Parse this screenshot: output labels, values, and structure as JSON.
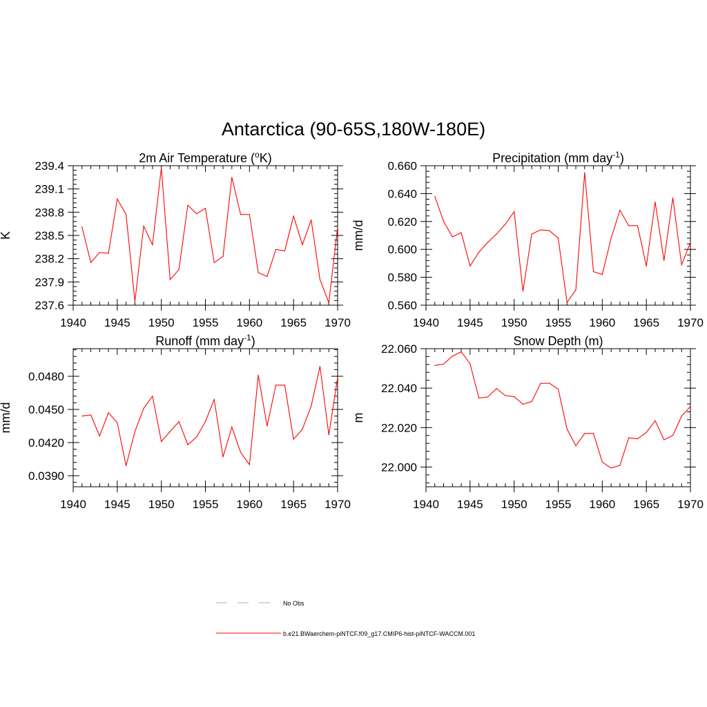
{
  "title": "Antarctica (90-65S,180W-180E)",
  "colors": {
    "series": "#ff0000",
    "obs": "#aaaadd",
    "axis": "#000000"
  },
  "legend": [
    {
      "label": "No Obs",
      "style": "dashed",
      "color": "#aaaadd"
    },
    {
      "label": "b.e21.BWaerchem-piNTCF.f09_g17.CMIP6-hist-piNTCF-WACCM.001",
      "style": "solid",
      "color": "#ff0000"
    }
  ],
  "chart_data": [
    {
      "type": "line",
      "title_main": "2m Air Temperature (",
      "title_sup": "o",
      "title_tail": "K)",
      "ylabel": "K",
      "xlim": [
        1940,
        1970
      ],
      "ylim": [
        237.6,
        239.4
      ],
      "xticks": [
        "1940",
        "1945",
        "1950",
        "1955",
        "1960",
        "1965",
        "1970"
      ],
      "yticks": [
        "237.6",
        "237.9",
        "238.2",
        "238.5",
        "238.8",
        "239.1",
        "239.4"
      ],
      "x": [
        1941,
        1942,
        1943,
        1944,
        1945,
        1946,
        1947,
        1948,
        1949,
        1950,
        1951,
        1952,
        1953,
        1954,
        1955,
        1956,
        1957,
        1958,
        1959,
        1960,
        1961,
        1962,
        1963,
        1964,
        1965,
        1966,
        1967,
        1968,
        1969,
        1970
      ],
      "y": [
        238.61,
        238.15,
        238.28,
        238.27,
        238.97,
        238.77,
        237.65,
        238.62,
        238.38,
        239.37,
        237.93,
        238.06,
        238.89,
        238.78,
        238.85,
        238.15,
        238.23,
        239.25,
        238.77,
        238.77,
        238.02,
        237.97,
        238.32,
        238.3,
        238.75,
        238.38,
        238.7,
        237.93,
        237.63,
        238.61
      ]
    },
    {
      "type": "line",
      "title_main": "Precipitation (mm day",
      "title_sup": "-1",
      "title_tail": ")",
      "ylabel": "mm/d",
      "xlim": [
        1940,
        1970
      ],
      "ylim": [
        0.56,
        0.66
      ],
      "xticks": [
        "1940",
        "1945",
        "1950",
        "1955",
        "1960",
        "1965",
        "1970"
      ],
      "yticks": [
        "0.560",
        "0.580",
        "0.600",
        "0.620",
        "0.640",
        "0.660"
      ],
      "x": [
        1941,
        1942,
        1943,
        1944,
        1945,
        1946,
        1947,
        1948,
        1949,
        1950,
        1951,
        1952,
        1953,
        1954,
        1955,
        1956,
        1957,
        1958,
        1959,
        1960,
        1961,
        1962,
        1963,
        1964,
        1965,
        1966,
        1967,
        1968,
        1969,
        1970
      ],
      "y": [
        0.638,
        0.62,
        0.609,
        0.612,
        0.588,
        0.598,
        0.605,
        0.611,
        0.618,
        0.627,
        0.57,
        0.611,
        0.614,
        0.6135,
        0.608,
        0.562,
        0.571,
        0.655,
        0.584,
        0.582,
        0.608,
        0.628,
        0.617,
        0.617,
        0.588,
        0.634,
        0.592,
        0.637,
        0.589,
        0.605
      ]
    },
    {
      "type": "line",
      "title_main": "Runoff (mm day",
      "title_sup": "-1",
      "title_tail": ")",
      "ylabel": "mm/d",
      "xlim": [
        1940,
        1970
      ],
      "ylim": [
        0.038,
        0.0505
      ],
      "xticks": [
        "1940",
        "1945",
        "1950",
        "1955",
        "1960",
        "1965",
        "1970"
      ],
      "yticks": [
        "0.0390",
        "0.0420",
        "0.0450",
        "0.0480"
      ],
      "x": [
        1941,
        1942,
        1943,
        1944,
        1945,
        1946,
        1947,
        1948,
        1949,
        1950,
        1951,
        1952,
        1953,
        1954,
        1955,
        1956,
        1957,
        1958,
        1959,
        1960,
        1961,
        1962,
        1963,
        1964,
        1965,
        1966,
        1967,
        1968,
        1969,
        1970
      ],
      "y": [
        0.0444,
        0.0445,
        0.0426,
        0.0447,
        0.0438,
        0.0399,
        0.043,
        0.0451,
        0.0462,
        0.0421,
        0.043,
        0.0439,
        0.0418,
        0.0425,
        0.0439,
        0.0459,
        0.0407,
        0.0434,
        0.0411,
        0.04,
        0.0481,
        0.0435,
        0.0472,
        0.0472,
        0.0423,
        0.0432,
        0.0453,
        0.0489,
        0.0427,
        0.0479
      ]
    },
    {
      "type": "line",
      "title_main": "Snow Depth (m)",
      "title_sup": "",
      "title_tail": "",
      "ylabel": "m",
      "xlim": [
        1940,
        1970
      ],
      "ylim": [
        21.99,
        22.06
      ],
      "xticks": [
        "1940",
        "1945",
        "1950",
        "1955",
        "1960",
        "1965",
        "1970"
      ],
      "yticks": [
        "22.000",
        "22.020",
        "22.040",
        "22.060"
      ],
      "x": [
        1941,
        1942,
        1943,
        1944,
        1945,
        1946,
        1947,
        1948,
        1949,
        1950,
        1951,
        1952,
        1953,
        1954,
        1955,
        1956,
        1957,
        1958,
        1959,
        1960,
        1961,
        1962,
        1963,
        1964,
        1965,
        1966,
        1967,
        1968,
        1969,
        1970
      ],
      "y": [
        22.0515,
        22.0522,
        22.0562,
        22.0584,
        22.0524,
        22.035,
        22.0355,
        22.0398,
        22.0362,
        22.0357,
        22.0318,
        22.0332,
        22.0424,
        22.0425,
        22.0395,
        22.0193,
        22.0108,
        22.017,
        22.017,
        22.0025,
        21.9995,
        22.0008,
        22.0148,
        22.0143,
        22.0175,
        22.0235,
        22.0138,
        22.016,
        22.0258,
        22.0307
      ]
    }
  ]
}
